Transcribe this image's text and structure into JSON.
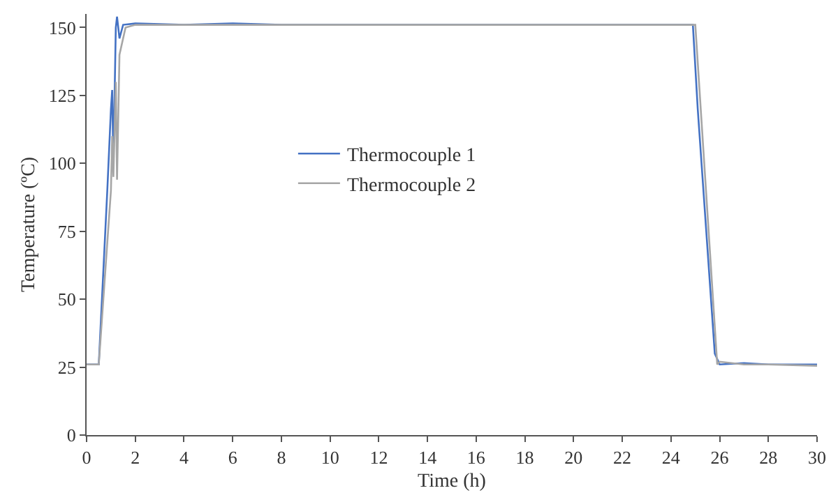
{
  "chart_data": {
    "type": "line",
    "xlabel": "Time (h)",
    "ylabel": "Temperature (ºC)",
    "xlim": [
      0,
      30
    ],
    "ylim": [
      0,
      155
    ],
    "xticks": [
      0,
      2,
      4,
      6,
      8,
      10,
      12,
      14,
      16,
      18,
      20,
      22,
      24,
      26,
      28,
      30
    ],
    "yticks": [
      0,
      25,
      50,
      75,
      100,
      125,
      150
    ],
    "legend": "top left",
    "marker": "none",
    "line_style": "solid",
    "series": [
      {
        "name": "Thermocouple 1",
        "color": "#4472c4",
        "x": [
          0,
          0.5,
          0.85,
          1.0,
          1.05,
          1.1,
          1.2,
          1.25,
          1.35,
          1.5,
          2,
          4,
          6,
          8,
          10,
          12,
          14,
          16,
          18,
          20,
          22,
          24,
          24.9,
          25.1,
          25.8,
          26,
          27,
          28,
          30
        ],
        "values": [
          26,
          26,
          90,
          120,
          127,
          100,
          150,
          154,
          146,
          151,
          151.5,
          151,
          151.5,
          151,
          151,
          151,
          151,
          151,
          151,
          151,
          151,
          151,
          151,
          120,
          30,
          26,
          26.5,
          26,
          26
        ]
      },
      {
        "name": "Thermocouple 2",
        "color": "#a6a6a6",
        "x": [
          0,
          0.5,
          1.0,
          1.05,
          1.1,
          1.2,
          1.25,
          1.35,
          1.6,
          2,
          4,
          6,
          8,
          10,
          12,
          14,
          16,
          18,
          20,
          22,
          24,
          25,
          25.9,
          26,
          27,
          28,
          30
        ],
        "values": [
          26,
          26,
          90,
          110,
          95,
          130,
          94,
          140,
          150,
          151,
          151,
          151,
          151,
          151,
          151,
          151,
          151,
          151,
          151,
          151,
          151,
          151,
          26,
          27,
          26,
          26,
          25.5
        ]
      }
    ]
  }
}
